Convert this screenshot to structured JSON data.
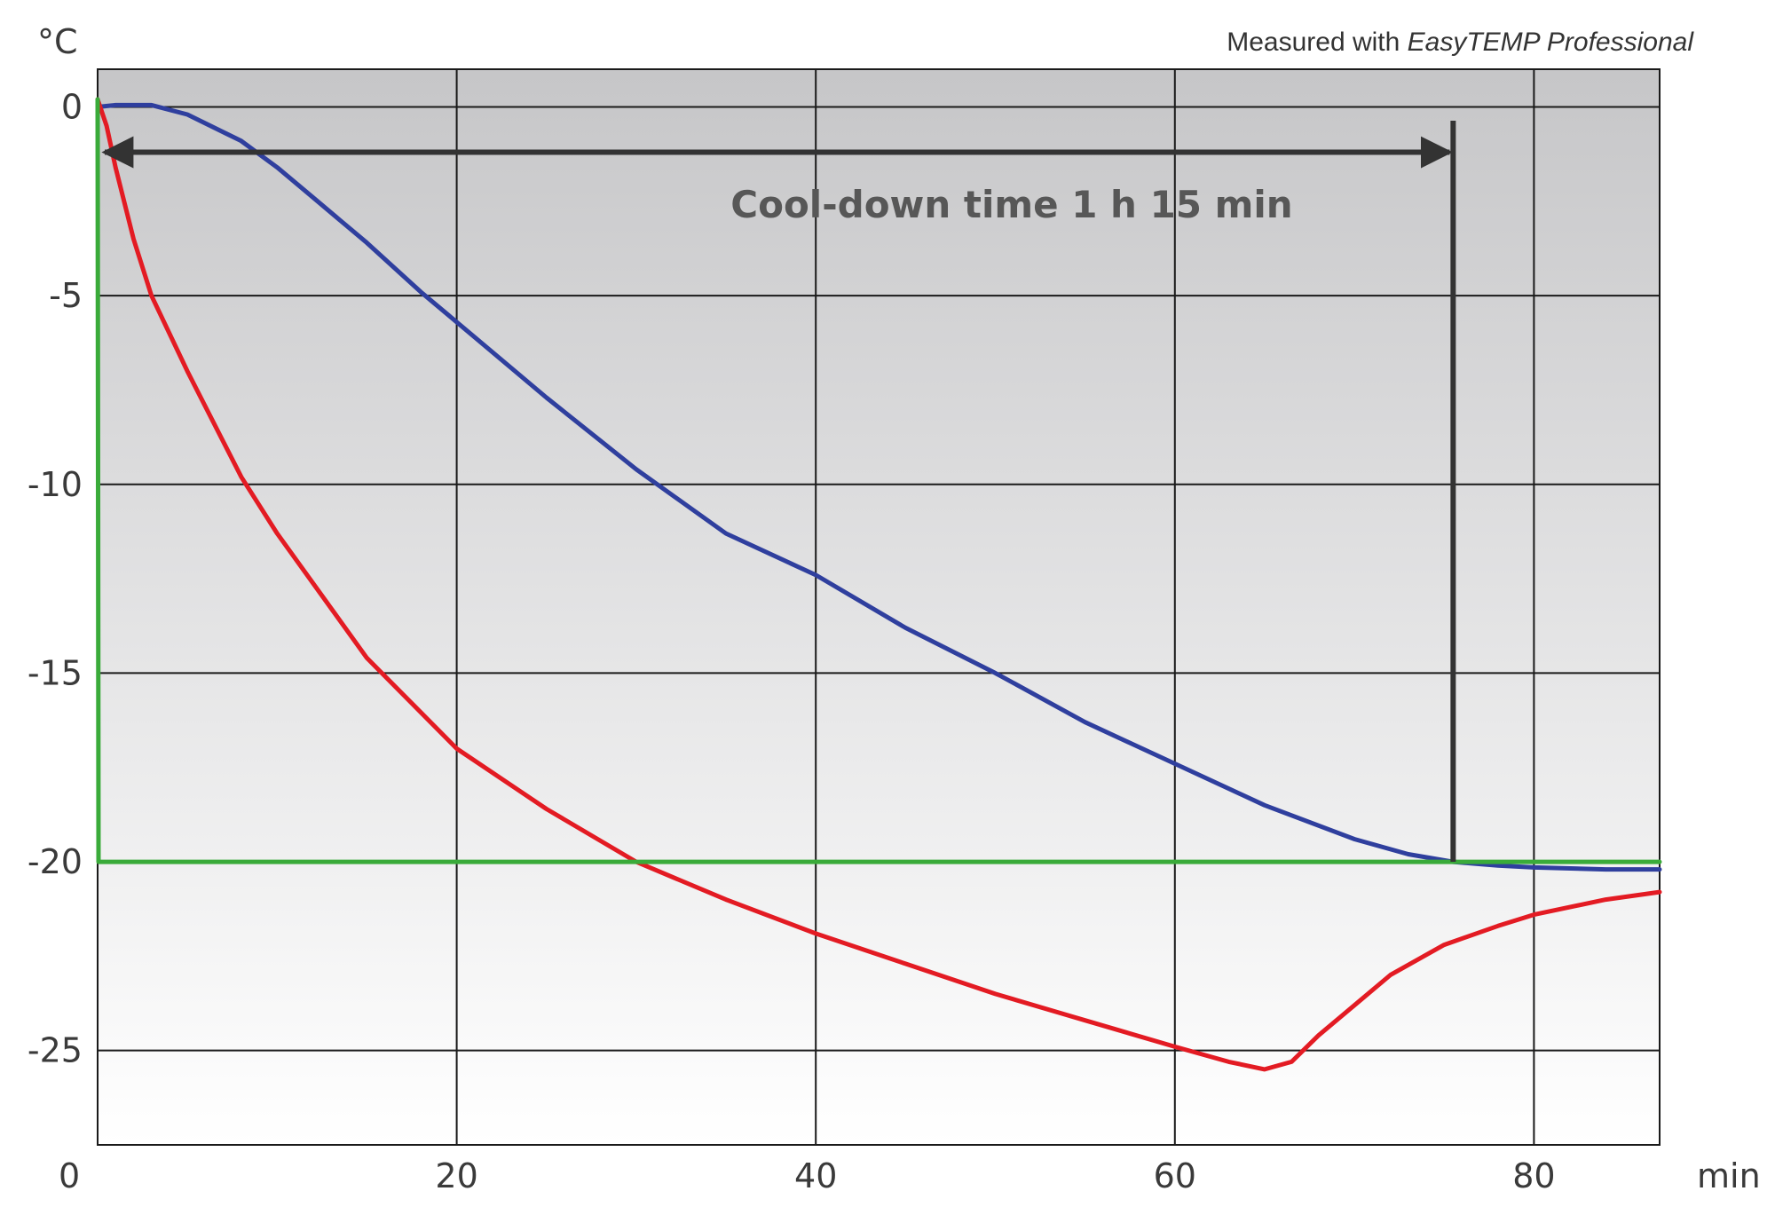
{
  "chart_data": {
    "type": "line",
    "title": "",
    "xlabel": "",
    "ylabel": "",
    "x_unit": "min",
    "y_unit": "°C",
    "xlim": [
      0,
      87
    ],
    "ylim": [
      -27.5,
      1
    ],
    "x_ticks": [
      0,
      20,
      40,
      60,
      80
    ],
    "y_ticks": [
      0,
      -5,
      -10,
      -15,
      -20,
      -25
    ],
    "grid": true,
    "credit": {
      "prefix": "Measured with ",
      "product": "EasyTEMP Professional"
    },
    "annotation": {
      "text": "Cool-down time 1 h 15 min",
      "x_start": 0,
      "x_end": 75.5,
      "y": -1.2
    },
    "series": [
      {
        "color": "#2f3f9e",
        "points": [
          [
            0,
            0
          ],
          [
            1,
            0.05
          ],
          [
            3,
            0.05
          ],
          [
            5,
            -0.2
          ],
          [
            8,
            -0.9
          ],
          [
            10,
            -1.6
          ],
          [
            12,
            -2.4
          ],
          [
            15,
            -3.6
          ],
          [
            18,
            -4.9
          ],
          [
            20,
            -5.7
          ],
          [
            25,
            -7.7
          ],
          [
            30,
            -9.6
          ],
          [
            35,
            -11.3
          ],
          [
            40,
            -12.4
          ],
          [
            45,
            -13.8
          ],
          [
            50,
            -15.0
          ],
          [
            55,
            -16.3
          ],
          [
            60,
            -17.4
          ],
          [
            65,
            -18.5
          ],
          [
            70,
            -19.4
          ],
          [
            73,
            -19.8
          ],
          [
            75.5,
            -20.0
          ],
          [
            78,
            -20.1
          ],
          [
            80,
            -20.15
          ],
          [
            84,
            -20.2
          ],
          [
            87,
            -20.2
          ]
        ]
      },
      {
        "color": "#e31b23",
        "points": [
          [
            0,
            0.2
          ],
          [
            0.5,
            -0.5
          ],
          [
            1,
            -1.6
          ],
          [
            2,
            -3.5
          ],
          [
            3,
            -5.0
          ],
          [
            5,
            -7.0
          ],
          [
            8,
            -9.8
          ],
          [
            10,
            -11.3
          ],
          [
            15,
            -14.6
          ],
          [
            20,
            -17.0
          ],
          [
            25,
            -18.6
          ],
          [
            30,
            -20.0
          ],
          [
            35,
            -21.0
          ],
          [
            40,
            -21.9
          ],
          [
            45,
            -22.7
          ],
          [
            50,
            -23.5
          ],
          [
            55,
            -24.2
          ],
          [
            60,
            -24.9
          ],
          [
            63,
            -25.3
          ],
          [
            65,
            -25.5
          ],
          [
            66.5,
            -25.3
          ],
          [
            68,
            -24.6
          ],
          [
            70,
            -23.8
          ],
          [
            72,
            -23.0
          ],
          [
            75,
            -22.2
          ],
          [
            78,
            -21.7
          ],
          [
            80,
            -21.4
          ],
          [
            84,
            -21.0
          ],
          [
            87,
            -20.8
          ]
        ]
      },
      {
        "color": "#3aab3a",
        "points": [
          [
            0,
            0.2
          ],
          [
            0.05,
            -20
          ],
          [
            87,
            -20
          ]
        ]
      }
    ]
  }
}
